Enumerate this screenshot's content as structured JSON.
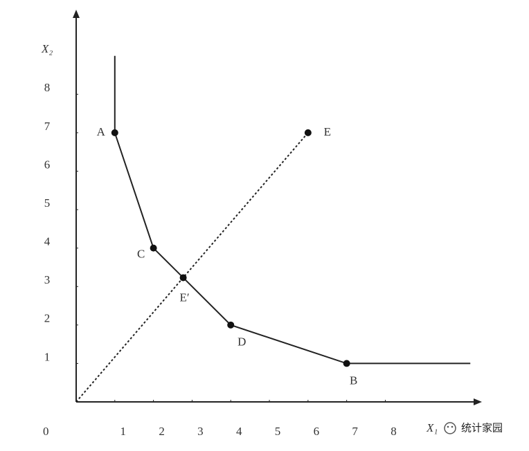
{
  "chart_data": {
    "type": "line",
    "x_label": "X₁",
    "y_label": "X₂",
    "origin_label": 0,
    "xlim": [
      0,
      10.5
    ],
    "ylim": [
      0,
      10.2
    ],
    "xticks": [
      1,
      2,
      3,
      4,
      5,
      6,
      7,
      8
    ],
    "yticks": [
      1,
      2,
      3,
      4,
      5,
      6,
      7,
      8
    ],
    "frontier": {
      "x": [
        1,
        1,
        2,
        4,
        7,
        10.2
      ],
      "y": [
        9,
        7,
        4,
        2,
        1,
        1
      ],
      "color": "#222"
    },
    "ray": {
      "x": [
        0,
        6
      ],
      "y": [
        0,
        7
      ],
      "color": "#222"
    },
    "points": [
      {
        "label": "A",
        "x": 1,
        "y": 7
      },
      {
        "label": "C",
        "x": 2,
        "y": 4
      },
      {
        "label": "E′",
        "x": 2.77,
        "y": 3.23
      },
      {
        "label": "D",
        "x": 4,
        "y": 2
      },
      {
        "label": "B",
        "x": 7,
        "y": 1
      },
      {
        "label": "E",
        "x": 6,
        "y": 7
      }
    ],
    "watermark": "统计家园"
  }
}
